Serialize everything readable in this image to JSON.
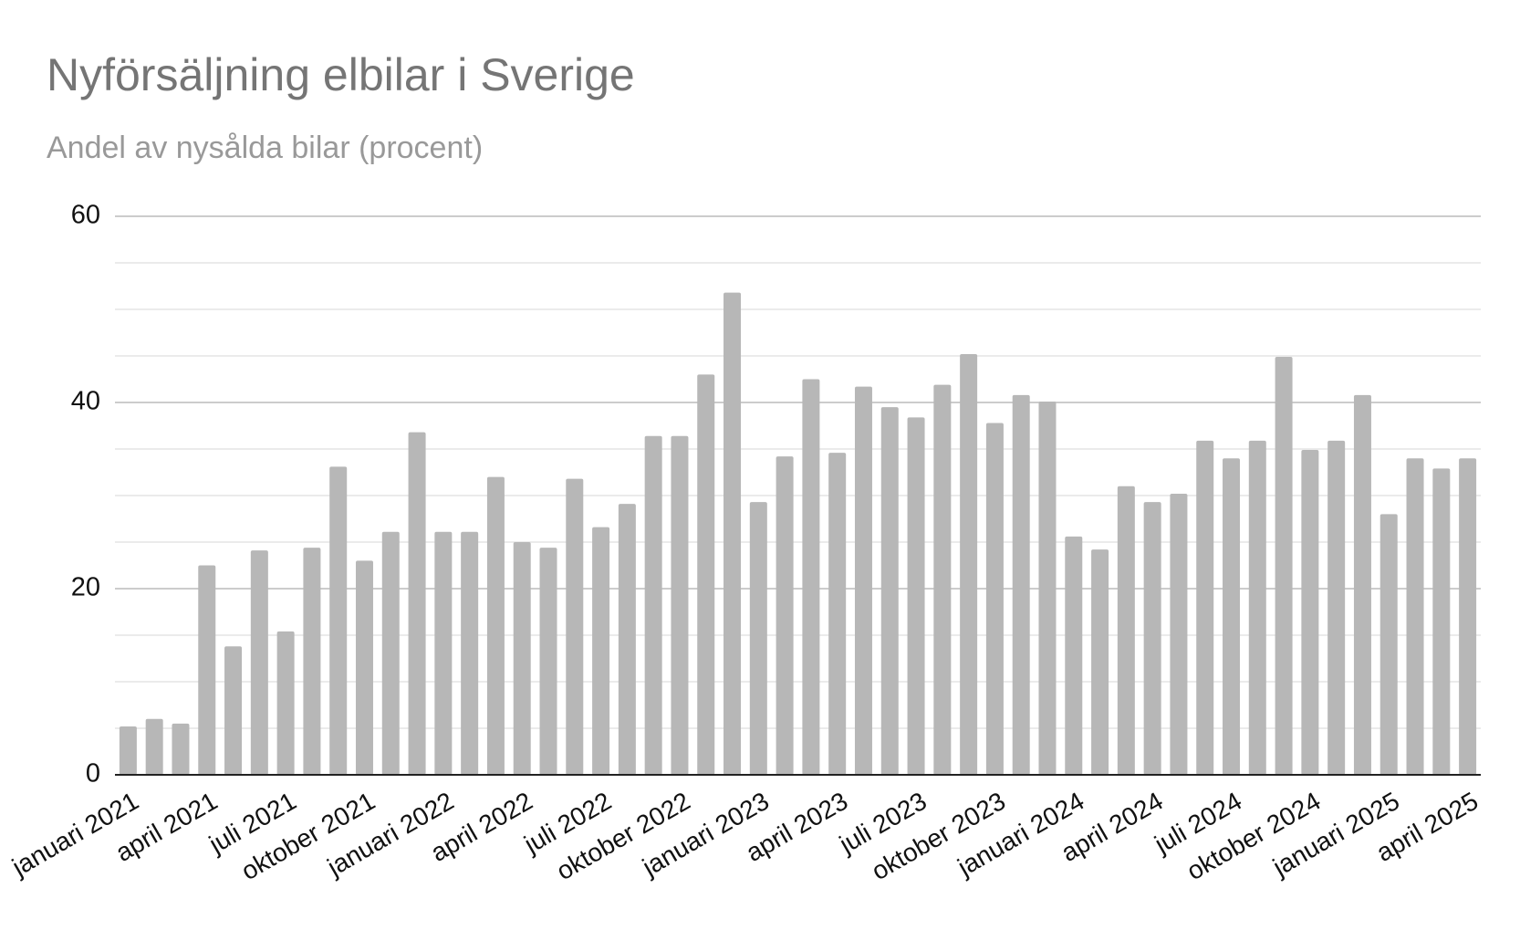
{
  "chart_data": {
    "type": "bar",
    "title": "Nyförsäljning elbilar i Sverige",
    "subtitle": "Andel av nysålda bilar (procent)",
    "categories": [
      "januari 2021",
      null,
      null,
      "april 2021",
      null,
      null,
      "juli 2021",
      null,
      null,
      "oktober 2021",
      null,
      null,
      "januari 2022",
      null,
      null,
      "april 2022",
      null,
      null,
      "juli 2022",
      null,
      null,
      "oktober 2022",
      null,
      null,
      "januari 2023",
      null,
      null,
      "april 2023",
      null,
      null,
      "juli 2023",
      null,
      null,
      "oktober 2023",
      null,
      null,
      "januari 2024",
      null,
      null,
      "april 2024",
      null,
      null,
      "juli 2024",
      null,
      null,
      "oktober 2024",
      null,
      null,
      "januari 2025",
      null,
      null,
      "april 2025"
    ],
    "values": [
      5.2,
      6.0,
      5.5,
      22.5,
      13.8,
      24.1,
      15.4,
      24.4,
      33.1,
      23.0,
      26.1,
      36.8,
      26.1,
      26.1,
      32.0,
      25.0,
      24.4,
      31.8,
      26.6,
      29.1,
      36.4,
      36.4,
      43.0,
      51.8,
      29.3,
      34.2,
      42.5,
      34.6,
      41.7,
      39.5,
      38.4,
      41.9,
      45.2,
      37.8,
      40.8,
      40.1,
      25.6,
      24.2,
      31.0,
      29.3,
      30.2,
      35.9,
      34.0,
      35.9,
      44.9,
      34.9,
      35.9,
      40.8,
      28.0,
      34.0,
      32.9,
      34.0
    ],
    "color": "#b7b7b7",
    "ylim": [
      0,
      60
    ],
    "yticks": [
      0,
      20,
      40,
      60
    ],
    "yminorticks": [
      5,
      10,
      15,
      25,
      30,
      35,
      45,
      50,
      55
    ],
    "grid": true
  }
}
